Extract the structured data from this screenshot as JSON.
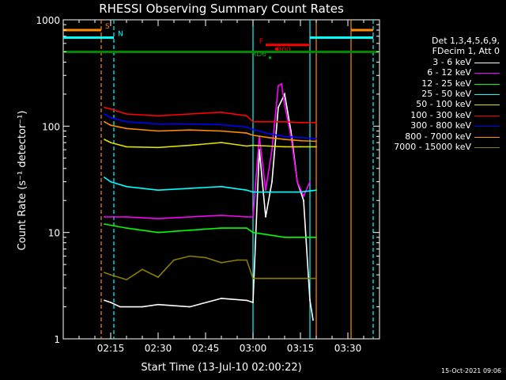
{
  "chart_data": {
    "type": "line",
    "title": "RHESSI Observing Summary Count Rates",
    "xlabel": "Start Time (13-Jul-10 02:00:22)",
    "ylabel": "Count Rate (s⁻¹ detector⁻¹)",
    "yscale": "log",
    "ylim": [
      1,
      1000
    ],
    "xlim": [
      "02:00",
      "03:40"
    ],
    "xticks": [
      "02:15",
      "02:30",
      "02:45",
      "03:00",
      "03:15",
      "03:30"
    ],
    "yticks": [
      "1",
      "10",
      "100",
      "1000"
    ],
    "legend_header": [
      "Det 1,3,4,5,6,9,",
      "FDecim 1, Att 0"
    ],
    "series": [
      {
        "name": "3 - 6 keV",
        "color": "#ffffff",
        "x": [
          "02:13",
          "02:15",
          "02:18",
          "02:25",
          "02:30",
          "02:40",
          "02:50",
          "02:58",
          "03:00",
          "03:02",
          "03:04",
          "03:06",
          "03:08",
          "03:10",
          "03:12",
          "03:14",
          "03:16",
          "03:18",
          "03:19"
        ],
        "y": [
          2.3,
          2.2,
          2.0,
          2.0,
          2.1,
          2.0,
          2.4,
          2.3,
          2.2,
          60,
          14,
          30,
          150,
          200,
          90,
          30,
          20,
          2.3,
          1.5
        ]
      },
      {
        "name": "6 - 12 keV",
        "color": "#ff00ff",
        "x": [
          "02:13",
          "02:20",
          "02:30",
          "02:40",
          "02:50",
          "02:58",
          "03:00",
          "03:02",
          "03:04",
          "03:06",
          "03:08",
          "03:09",
          "03:10",
          "03:12",
          "03:14",
          "03:16",
          "03:18"
        ],
        "y": [
          14,
          14,
          13.5,
          14,
          14.5,
          14,
          14,
          80,
          25,
          60,
          240,
          250,
          160,
          80,
          30,
          22,
          30
        ]
      },
      {
        "name": "12 - 25 keV",
        "color": "#00ff00",
        "x": [
          "02:13",
          "02:20",
          "02:30",
          "02:40",
          "02:50",
          "02:58",
          "03:00",
          "03:05",
          "03:10",
          "03:15",
          "03:20"
        ],
        "y": [
          12,
          11,
          10,
          10.5,
          11,
          11,
          10,
          9.5,
          9,
          9,
          9
        ]
      },
      {
        "name": "25 - 50 keV",
        "color": "#00ffff",
        "x": [
          "02:13",
          "02:15",
          "02:20",
          "02:30",
          "02:40",
          "02:50",
          "02:58",
          "03:00",
          "03:05",
          "03:10",
          "03:15",
          "03:20"
        ],
        "y": [
          33,
          30,
          27,
          25,
          26,
          27,
          25,
          24,
          24,
          24,
          24,
          25
        ]
      },
      {
        "name": "50 - 100 keV",
        "color": "#dddd00",
        "x": [
          "02:13",
          "02:15",
          "02:20",
          "02:30",
          "02:40",
          "02:50",
          "02:58",
          "03:00",
          "03:05",
          "03:10",
          "03:15",
          "03:20"
        ],
        "y": [
          75,
          70,
          64,
          63,
          66,
          70,
          65,
          66,
          65,
          64,
          64,
          64
        ]
      },
      {
        "name": "100 - 300 keV",
        "color": "#ff0000",
        "x": [
          "02:13",
          "02:15",
          "02:20",
          "02:30",
          "02:40",
          "02:50",
          "02:58",
          "03:00",
          "03:05",
          "03:10",
          "03:15",
          "03:20"
        ],
        "y": [
          150,
          145,
          130,
          125,
          130,
          135,
          125,
          110,
          110,
          110,
          108,
          108
        ]
      },
      {
        "name": "300 - 800 keV",
        "color": "#0000ff",
        "x": [
          "02:13",
          "02:15",
          "02:20",
          "02:30",
          "02:40",
          "02:50",
          "02:58",
          "03:00",
          "03:05",
          "03:10",
          "03:15",
          "03:20"
        ],
        "y": [
          130,
          120,
          110,
          105,
          105,
          103,
          98,
          93,
          85,
          80,
          78,
          76
        ]
      },
      {
        "name": "800 - 7000 keV",
        "color": "#ff8c00",
        "x": [
          "02:13",
          "02:15",
          "02:20",
          "02:30",
          "02:40",
          "02:50",
          "02:58",
          "03:00",
          "03:05",
          "03:10",
          "03:15",
          "03:20"
        ],
        "y": [
          110,
          102,
          95,
          90,
          92,
          90,
          86,
          82,
          78,
          75,
          73,
          72
        ]
      },
      {
        "name": "7000 - 15000 keV",
        "color": "#8b7d00",
        "x": [
          "02:13",
          "02:15",
          "02:20",
          "02:25",
          "02:30",
          "02:35",
          "02:40",
          "02:45",
          "02:50",
          "02:55",
          "02:58",
          "03:00",
          "03:05",
          "03:10",
          "03:15",
          "03:20"
        ],
        "y": [
          4.2,
          4.0,
          3.6,
          4.5,
          3.8,
          5.5,
          6.0,
          5.8,
          5.2,
          5.5,
          5.5,
          3.7,
          3.7,
          3.7,
          3.7,
          3.7
        ]
      }
    ],
    "vertical_lines": [
      {
        "x": "02:12",
        "color": "#ff8c00",
        "style": "dashed"
      },
      {
        "x": "02:16",
        "color": "#00ffff",
        "style": "dashed"
      },
      {
        "x": "03:00",
        "color": "#00ffff",
        "style": "solid"
      },
      {
        "x": "03:18",
        "color": "#00ffff",
        "style": "solid"
      },
      {
        "x": "03:20",
        "color": "#ff8c00",
        "style": "solid"
      },
      {
        "x": "03:31",
        "color": "#ff8c00",
        "style": "solid"
      },
      {
        "x": "03:38",
        "color": "#00ffff",
        "style": "dashed"
      }
    ],
    "flag_bars": [
      {
        "label": "S",
        "color": "#ff8c00",
        "segments": [
          [
            "02:00",
            "02:12"
          ],
          [
            "03:31",
            "03:38"
          ]
        ],
        "y": 800
      },
      {
        "label": "N",
        "color": "#00ffff",
        "segments": [
          [
            "02:00",
            "02:16"
          ],
          [
            "03:18",
            "03:38"
          ]
        ],
        "y": 680
      },
      {
        "label": "F",
        "color": "#ff0000",
        "segments": [
          [
            "03:04",
            "03:18"
          ]
        ],
        "y": 580
      },
      {
        "label": "R00",
        "color": "#ff0000",
        "segments": [
          [
            "03:07",
            "03:08"
          ]
        ],
        "y": 530
      },
      {
        "label": "RD6",
        "color": "#00aa00",
        "segments": [
          [
            "03:05",
            "03:05"
          ]
        ],
        "y": 440
      },
      {
        "label": "",
        "color": "#008800",
        "segments": [
          [
            "02:00",
            "03:40"
          ]
        ],
        "y": 500
      }
    ]
  },
  "timestamp": "15-Oct-2021 09:06"
}
